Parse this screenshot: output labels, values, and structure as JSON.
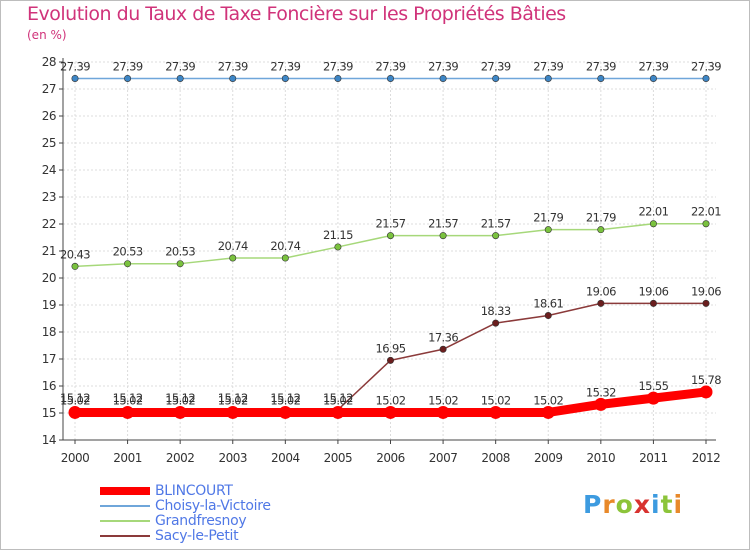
{
  "title": "Evolution du Taux de Taxe Foncière sur les Propriétés Bâties",
  "unit": "(en %)",
  "brand": {
    "letters": [
      {
        "ch": "P",
        "color": "#3d9be0"
      },
      {
        "ch": "r",
        "color": "#e8892a"
      },
      {
        "ch": "o",
        "color": "#8cc43a"
      },
      {
        "ch": "x",
        "color": "#d8322f"
      },
      {
        "ch": "i",
        "color": "#3d9be0"
      },
      {
        "ch": "t",
        "color": "#8cc43a"
      },
      {
        "ch": "i",
        "color": "#e8892a"
      }
    ]
  },
  "chart_data": {
    "type": "line",
    "title": "Evolution du Taux de Taxe Foncière sur les Propriétés Bâties",
    "ylabel": "(en %)",
    "ylim": [
      14,
      28
    ],
    "yticks": [
      14,
      15,
      16,
      17,
      18,
      19,
      20,
      21,
      22,
      23,
      24,
      25,
      26,
      27,
      28
    ],
    "x": [
      "2000",
      "2001",
      "2002",
      "2003",
      "2004",
      "2005",
      "2006",
      "2007",
      "2008",
      "2009",
      "2010",
      "2011",
      "2012"
    ],
    "grid": true,
    "legend_position": "bottom-left",
    "series": [
      {
        "name": "Choisy-la-Victoire",
        "color": "#6fa6da",
        "marker": "#3d86c6",
        "values": [
          27.39,
          27.39,
          27.39,
          27.39,
          27.39,
          27.39,
          27.39,
          27.39,
          27.39,
          27.39,
          27.39,
          27.39,
          27.39
        ],
        "labels": [
          "27.39",
          "27.39",
          "27.39",
          "27.39",
          "27.39",
          "27.39",
          "27.39",
          "27.39",
          "27.39",
          "27.39",
          "27.39",
          "27.39",
          "27.39"
        ]
      },
      {
        "name": "Grandfresnoy",
        "color": "#a6d87a",
        "marker": "#7ac23e",
        "values": [
          20.43,
          20.53,
          20.53,
          20.74,
          20.74,
          21.15,
          21.57,
          21.57,
          21.57,
          21.79,
          21.79,
          22.01,
          22.01
        ],
        "labels": [
          "20.43",
          "20.53",
          "20.53",
          "20.74",
          "20.74",
          "21.15",
          "21.57",
          "21.57",
          "21.57",
          "21.79",
          "21.79",
          "22.01",
          "22.01"
        ]
      },
      {
        "name": "Sacy-le-Petit",
        "color": "#8b3a3a",
        "marker": "#6b1e1e",
        "values": [
          15.12,
          15.12,
          15.12,
          15.12,
          15.12,
          15.12,
          16.95,
          17.36,
          18.33,
          18.61,
          19.06,
          19.06,
          19.06
        ],
        "labels": [
          "15.12",
          "15.12",
          "15.12",
          "15.12",
          "15.12",
          "15.12",
          "16.95",
          "17.36",
          "18.33",
          "18.61",
          "19.06",
          "19.06",
          "19.06"
        ]
      },
      {
        "name": "BLINCOURT",
        "color": "#ff0000",
        "marker": "#ff0000",
        "values": [
          15.02,
          15.02,
          15.02,
          15.02,
          15.02,
          15.02,
          15.02,
          15.02,
          15.02,
          15.02,
          15.32,
          15.55,
          15.78
        ],
        "labels": [
          "15.02",
          "15.02",
          "15.02",
          "15.02",
          "15.02",
          "15.02",
          "15.02",
          "15.02",
          "15.02",
          "15.02",
          "15.32",
          "15.55",
          "15.78"
        ]
      }
    ],
    "legend": [
      {
        "name": "BLINCOURT",
        "color": "#ff0000"
      },
      {
        "name": "Choisy-la-Victoire",
        "color": "#6fa6da"
      },
      {
        "name": "Grandfresnoy",
        "color": "#a6d87a"
      },
      {
        "name": "Sacy-le-Petit",
        "color": "#8b3a3a"
      }
    ]
  }
}
